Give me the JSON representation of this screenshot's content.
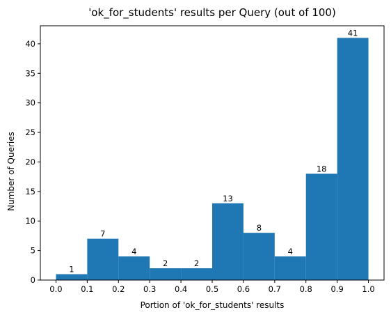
{
  "chart_data": {
    "type": "bar",
    "title": "'ok_for_students' results per Query (out of 100)",
    "xlabel": "Portion of 'ok_for_students' results",
    "ylabel": "Number of Queries",
    "bins": [
      {
        "x0": 0.0,
        "x1": 0.1,
        "value": 1
      },
      {
        "x0": 0.1,
        "x1": 0.2,
        "value": 7
      },
      {
        "x0": 0.2,
        "x1": 0.3,
        "value": 4
      },
      {
        "x0": 0.3,
        "x1": 0.4,
        "value": 2
      },
      {
        "x0": 0.4,
        "x1": 0.5,
        "value": 2
      },
      {
        "x0": 0.5,
        "x1": 0.6,
        "value": 13
      },
      {
        "x0": 0.6,
        "x1": 0.7,
        "value": 8
      },
      {
        "x0": 0.7,
        "x1": 0.8,
        "value": 4
      },
      {
        "x0": 0.8,
        "x1": 0.9,
        "value": 18
      },
      {
        "x0": 0.9,
        "x1": 1.0,
        "value": 41
      }
    ],
    "x_ticks": [
      "0.0",
      "0.1",
      "0.2",
      "0.3",
      "0.4",
      "0.5",
      "0.6",
      "0.7",
      "0.8",
      "0.9",
      "1.0"
    ],
    "y_ticks": [
      "0",
      "5",
      "10",
      "15",
      "20",
      "25",
      "30",
      "35",
      "40"
    ],
    "xlim": [
      -0.05,
      1.05
    ],
    "ylim": [
      0,
      43.05
    ],
    "grid": false,
    "bar_color": "#1f77b4"
  }
}
